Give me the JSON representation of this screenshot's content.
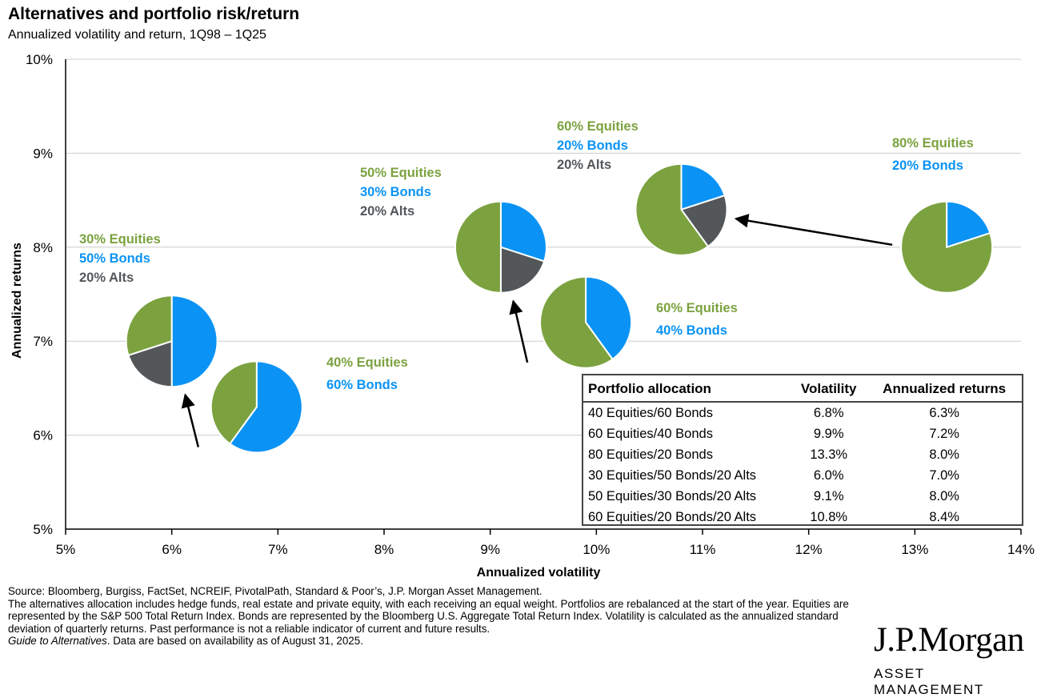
{
  "header": {
    "title": "Alternatives and portfolio risk/return",
    "subtitle": "Annualized volatility and return, 1Q98 – 1Q25"
  },
  "colors": {
    "equities": "#7ba23f",
    "bonds": "#0a93f5",
    "alts": "#53575a",
    "grid": "#cccccc",
    "axis": "#000000"
  },
  "chart_data": {
    "type": "scatter",
    "title": "Alternatives and portfolio risk/return",
    "subtitle": "Annualized volatility and return, 1Q98 – 1Q25",
    "xlabel": "Annualized volatility",
    "ylabel": "Annualized returns",
    "xlim": [
      5,
      14
    ],
    "ylim": [
      5,
      10
    ],
    "x_ticks": [
      "5%",
      "6%",
      "7%",
      "8%",
      "9%",
      "10%",
      "11%",
      "12%",
      "13%",
      "14%"
    ],
    "y_ticks": [
      "5%",
      "6%",
      "7%",
      "8%",
      "9%",
      "10%"
    ],
    "marker": "pie",
    "portfolios": [
      {
        "name": "40 Equities/60 Bonds",
        "volatility": 6.8,
        "return": 6.3,
        "allocation": {
          "equities": 40,
          "bonds": 60,
          "alts": 0
        },
        "labels": [
          "40% Equities",
          "60% Bonds"
        ]
      },
      {
        "name": "60 Equities/40 Bonds",
        "volatility": 9.9,
        "return": 7.2,
        "allocation": {
          "equities": 60,
          "bonds": 40,
          "alts": 0
        },
        "labels": [
          "60% Equities",
          "40% Bonds"
        ]
      },
      {
        "name": "80 Equities/20 Bonds",
        "volatility": 13.3,
        "return": 8.0,
        "allocation": {
          "equities": 80,
          "bonds": 20,
          "alts": 0
        },
        "labels": [
          "80% Equities",
          "20% Bonds"
        ]
      },
      {
        "name": "30 Equities/50 Bonds/20 Alts",
        "volatility": 6.0,
        "return": 7.0,
        "allocation": {
          "equities": 30,
          "bonds": 50,
          "alts": 20
        },
        "labels": [
          "30% Equities",
          "50% Bonds",
          "20% Alts"
        ]
      },
      {
        "name": "50 Equities/30 Bonds/20 Alts",
        "volatility": 9.1,
        "return": 8.0,
        "allocation": {
          "equities": 50,
          "bonds": 30,
          "alts": 20
        },
        "labels": [
          "50% Equities",
          "30% Bonds",
          "20% Alts"
        ]
      },
      {
        "name": "60 Equities/20 Bonds/20 Alts",
        "volatility": 10.8,
        "return": 8.4,
        "allocation": {
          "equities": 60,
          "bonds": 20,
          "alts": 20
        },
        "labels": [
          "60% Equities",
          "20% Bonds",
          "20% Alts"
        ]
      }
    ],
    "arrows": [
      {
        "from": "40 Equities/60 Bonds",
        "to": "30 Equities/50 Bonds/20 Alts"
      },
      {
        "from": "60 Equities/40 Bonds",
        "to": "50 Equities/30 Bonds/20 Alts"
      },
      {
        "from": "80 Equities/20 Bonds",
        "to": "60 Equities/20 Bonds/20 Alts"
      }
    ]
  },
  "table": {
    "headers": [
      "Portfolio allocation",
      "Volatility",
      "Annualized returns"
    ],
    "rows": [
      [
        "40 Equities/60 Bonds",
        "6.8%",
        "6.3%"
      ],
      [
        "60 Equities/40 Bonds",
        "9.9%",
        "7.2%"
      ],
      [
        "80 Equities/20 Bonds",
        "13.3%",
        "8.0%"
      ],
      [
        "30 Equities/50 Bonds/20 Alts",
        "6.0%",
        "7.0%"
      ],
      [
        "50 Equities/30 Bonds/20 Alts",
        "9.1%",
        "8.0%"
      ],
      [
        "60 Equities/20 Bonds/20 Alts",
        "10.8%",
        "8.4%"
      ]
    ]
  },
  "footnote": {
    "source": "Source: Bloomberg, Burgiss, FactSet, NCREIF, PivotalPath, Standard & Poor’s, J.P. Morgan Asset Management.",
    "note": "The alternatives allocation includes hedge funds, real estate and private equity, with each receiving an equal weight. Portfolios are rebalanced at the start of the year. Equities are represented by the S&P 500 Total Return Index. Bonds are represented by the Bloomberg U.S. Aggregate Total Return Index. Volatility is calculated as the annualized standard deviation of quarterly returns. Past performance is not a reliable indicator of current and future results.",
    "guide_title": "Guide to Alternatives",
    "guide_rest": ". Data are based on availability as of August 31, 2025."
  },
  "logo": {
    "name": "J.P.Morgan",
    "sub": "ASSET MANAGEMENT"
  }
}
